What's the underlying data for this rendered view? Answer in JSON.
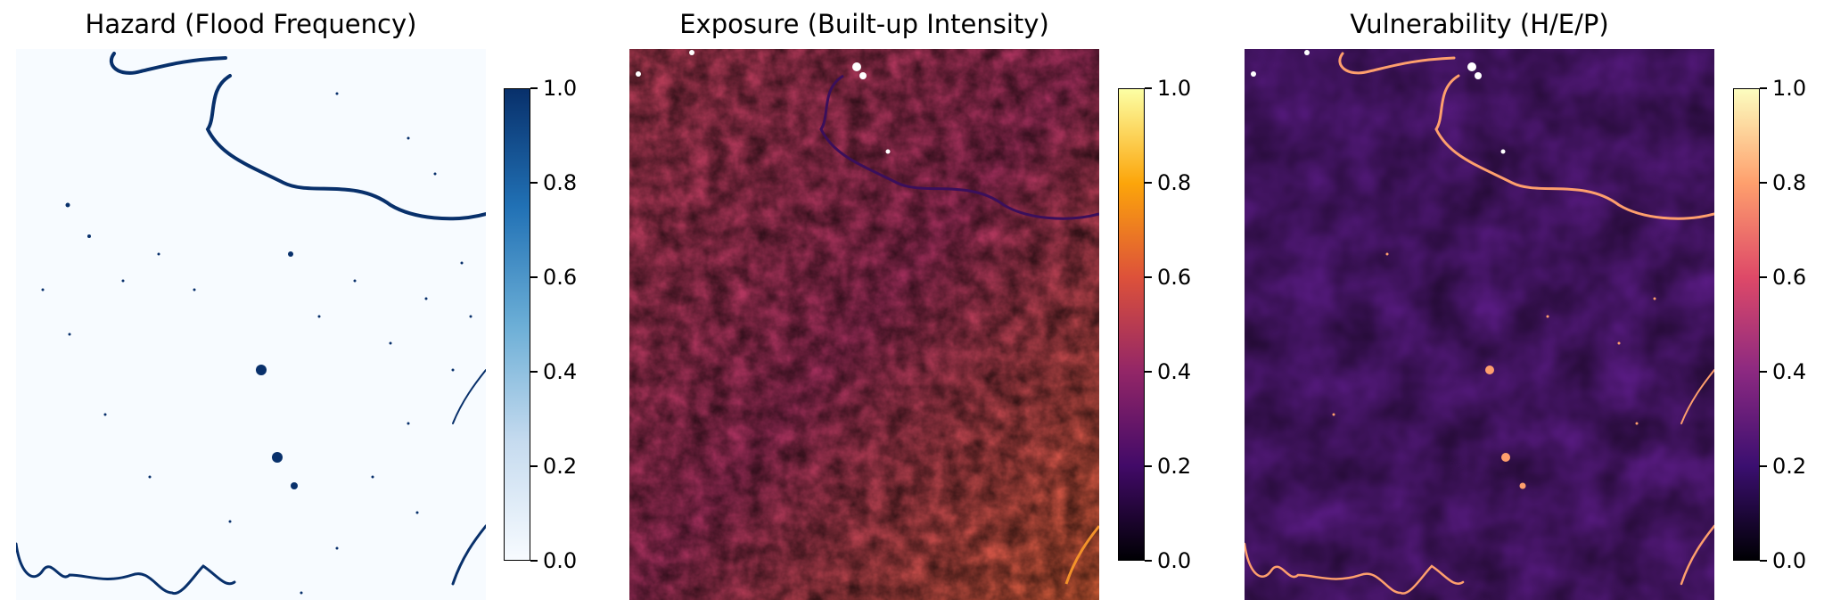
{
  "panels": [
    {
      "title": "Hazard (Flood Frequency)",
      "colormap": "Blues",
      "colorbar_gradient": [
        "#f7fbff",
        "#c6dbef",
        "#6baed6",
        "#2171b5",
        "#08306b"
      ]
    },
    {
      "title": "Exposure (Built-up Intensity)",
      "colormap": "inferno",
      "colorbar_gradient": [
        "#000004",
        "#420a68",
        "#932667",
        "#dd513a",
        "#fca50a",
        "#fcffa4"
      ]
    },
    {
      "title": "Vulnerability (H/E/P)",
      "colormap": "magma",
      "colorbar_gradient": [
        "#000004",
        "#3b0f70",
        "#8c2981",
        "#de4968",
        "#fe9f6d",
        "#fcfdbf"
      ]
    }
  ],
  "colorbar_ticks": [
    "0.0",
    "0.2",
    "0.4",
    "0.6",
    "0.8",
    "1.0"
  ]
}
